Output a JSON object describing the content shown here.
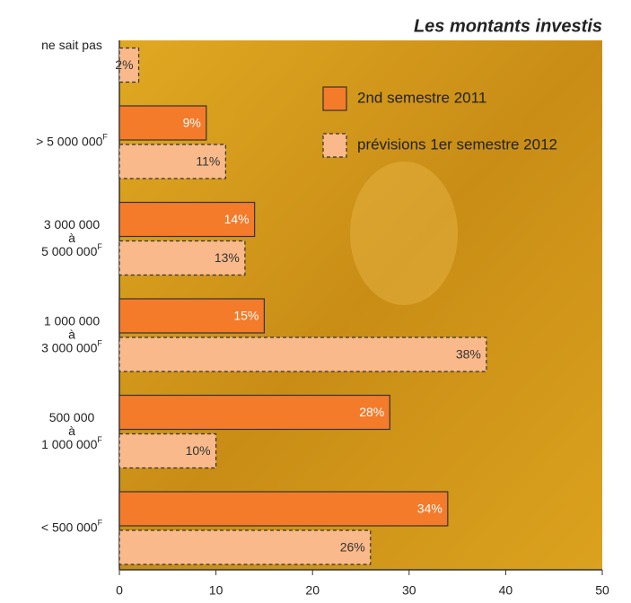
{
  "chart_data": {
    "type": "barh",
    "title": "Les montants investis",
    "categories": [
      "ne sait pas",
      "> 5 000 000F",
      "3 000 000\nà\n5 000 000F",
      "1 000 000\nà\n3 000 000F",
      "500 000\nà\n1 000 000F",
      "< 500 000F"
    ],
    "series": [
      {
        "name": "2nd semestre 2011",
        "color": "#f47b2a",
        "values": [
          null,
          9,
          14,
          15,
          28,
          34
        ],
        "value_labels": [
          null,
          "9%",
          "14%",
          "15%",
          "28%",
          "34%"
        ]
      },
      {
        "name": "prévisions 1er semestre 2012",
        "color": "#f9b98a",
        "values": [
          2,
          11,
          13,
          38,
          10,
          26
        ],
        "value_labels": [
          "2%",
          "11%",
          "13%",
          "38%",
          "10%",
          "26%"
        ]
      }
    ],
    "xlim": [
      0,
      50
    ],
    "xticks": [
      0,
      10,
      20,
      30,
      40,
      50
    ]
  }
}
